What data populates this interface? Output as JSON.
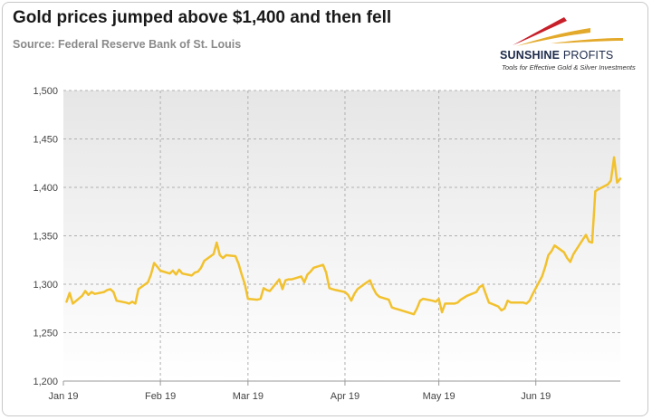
{
  "header": {
    "title": "Gold prices jumped above $1,400 and then fell",
    "subtitle": "Source: Federal Reserve Bank of St. Louis"
  },
  "logo": {
    "word_bold": "SUNSHINE",
    "word_light": "PROFITS",
    "tagline": "Tools for Effective Gold & Silver Investments",
    "colors": {
      "red": "#c8202a",
      "gold": "#e3a92a",
      "navy": "#1d2a4a"
    }
  },
  "chart_data": {
    "type": "line",
    "title": "Gold prices jumped above $1,400 and then fell",
    "xlabel": "",
    "ylabel": "",
    "ylim": [
      1200,
      1500
    ],
    "yticks": [
      1200,
      1250,
      1300,
      1350,
      1400,
      1450,
      1500
    ],
    "ytick_labels": [
      "1,200",
      "1,250",
      "1,300",
      "1,350",
      "1,400",
      "1,450",
      "1,500"
    ],
    "xlim": [
      "2019-01-01",
      "2019-06-28"
    ],
    "xticks": [
      "2019-01-01",
      "2019-02-01",
      "2019-03-01",
      "2019-04-01",
      "2019-05-01",
      "2019-06-01"
    ],
    "xtick_labels": [
      "Jan 19",
      "Feb 19",
      "Mar 19",
      "Apr 19",
      "May 19",
      "Jun 19"
    ],
    "grid": true,
    "legend": "none",
    "series": [
      {
        "color": "#f2c12e",
        "x": [
          "2019-01-02",
          "2019-01-03",
          "2019-01-04",
          "2019-01-07",
          "2019-01-08",
          "2019-01-09",
          "2019-01-10",
          "2019-01-11",
          "2019-01-14",
          "2019-01-15",
          "2019-01-16",
          "2019-01-17",
          "2019-01-18",
          "2019-01-21",
          "2019-01-22",
          "2019-01-23",
          "2019-01-24",
          "2019-01-25",
          "2019-01-28",
          "2019-01-29",
          "2019-01-30",
          "2019-01-31",
          "2019-02-01",
          "2019-02-04",
          "2019-02-05",
          "2019-02-06",
          "2019-02-07",
          "2019-02-08",
          "2019-02-11",
          "2019-02-12",
          "2019-02-13",
          "2019-02-14",
          "2019-02-15",
          "2019-02-18",
          "2019-02-19",
          "2019-02-20",
          "2019-02-21",
          "2019-02-22",
          "2019-02-25",
          "2019-02-26",
          "2019-02-27",
          "2019-02-28",
          "2019-03-01",
          "2019-03-04",
          "2019-03-05",
          "2019-03-06",
          "2019-03-07",
          "2019-03-08",
          "2019-03-11",
          "2019-03-12",
          "2019-03-13",
          "2019-03-14",
          "2019-03-15",
          "2019-03-18",
          "2019-03-19",
          "2019-03-20",
          "2019-03-21",
          "2019-03-22",
          "2019-03-25",
          "2019-03-26",
          "2019-03-27",
          "2019-03-28",
          "2019-03-29",
          "2019-04-01",
          "2019-04-02",
          "2019-04-03",
          "2019-04-04",
          "2019-04-05",
          "2019-04-08",
          "2019-04-09",
          "2019-04-10",
          "2019-04-11",
          "2019-04-12",
          "2019-04-15",
          "2019-04-16",
          "2019-04-17",
          "2019-04-18",
          "2019-04-22",
          "2019-04-23",
          "2019-04-24",
          "2019-04-25",
          "2019-04-26",
          "2019-04-29",
          "2019-04-30",
          "2019-05-01",
          "2019-05-02",
          "2019-05-03",
          "2019-05-06",
          "2019-05-07",
          "2019-05-08",
          "2019-05-09",
          "2019-05-10",
          "2019-05-13",
          "2019-05-14",
          "2019-05-15",
          "2019-05-16",
          "2019-05-17",
          "2019-05-20",
          "2019-05-21",
          "2019-05-22",
          "2019-05-23",
          "2019-05-24",
          "2019-05-28",
          "2019-05-29",
          "2019-05-30",
          "2019-05-31",
          "2019-06-03",
          "2019-06-04",
          "2019-06-05",
          "2019-06-06",
          "2019-06-07",
          "2019-06-10",
          "2019-06-11",
          "2019-06-12",
          "2019-06-13",
          "2019-06-14",
          "2019-06-17",
          "2019-06-18",
          "2019-06-19",
          "2019-06-20",
          "2019-06-21",
          "2019-06-24",
          "2019-06-25",
          "2019-06-26",
          "2019-06-27",
          "2019-06-28"
        ],
        "values": [
          1282,
          1291,
          1280,
          1288,
          1293,
          1289,
          1292,
          1290,
          1292,
          1294,
          1295,
          1292,
          1283,
          1281,
          1280,
          1282,
          1280,
          1295,
          1302,
          1310,
          1322,
          1318,
          1314,
          1311,
          1314,
          1310,
          1315,
          1311,
          1309,
          1312,
          1313,
          1317,
          1324,
          1331,
          1343,
          1330,
          1327,
          1330,
          1329,
          1321,
          1310,
          1300,
          1285,
          1284,
          1285,
          1296,
          1294,
          1293,
          1305,
          1295,
          1304,
          1305,
          1305,
          1308,
          1302,
          1310,
          1313,
          1317,
          1320,
          1312,
          1296,
          1295,
          1294,
          1292,
          1289,
          1283,
          1290,
          1295,
          1302,
          1304,
          1296,
          1290,
          1287,
          1284,
          1276,
          1275,
          1274,
          1270,
          1269,
          1275,
          1283,
          1285,
          1283,
          1282,
          1285,
          1271,
          1280,
          1280,
          1281,
          1284,
          1286,
          1288,
          1292,
          1297,
          1299,
          1290,
          1281,
          1277,
          1273,
          1275,
          1283,
          1281,
          1281,
          1280,
          1283,
          1290,
          1308,
          1318,
          1330,
          1334,
          1340,
          1333,
          1327,
          1323,
          1331,
          1336,
          1351,
          1344,
          1343,
          1396,
          1398,
          1403,
          1407,
          1431,
          1405,
          1409
        ]
      }
    ]
  }
}
